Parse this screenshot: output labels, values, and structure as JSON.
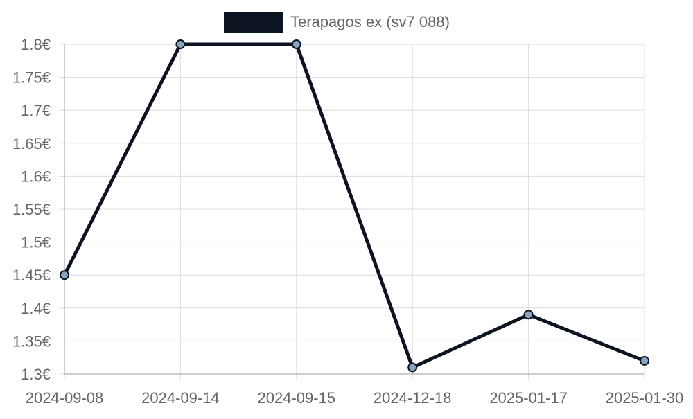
{
  "chart_data": {
    "type": "line",
    "x": [
      "2024-09-08",
      "2024-09-14",
      "2024-09-15",
      "2024-12-18",
      "2025-01-17",
      "2025-01-30"
    ],
    "series": [
      {
        "name": "Terapagos ex (sv7 088)",
        "values": [
          1.45,
          1.8,
          1.8,
          1.31,
          1.39,
          1.32
        ]
      }
    ],
    "ylim": [
      1.3,
      1.8
    ],
    "y_ticks": [
      "1.3€",
      "1.35€",
      "1.4€",
      "1.45€",
      "1.5€",
      "1.55€",
      "1.6€",
      "1.65€",
      "1.7€",
      "1.75€",
      "1.8€"
    ],
    "grid": true,
    "legend_position": "top-center",
    "colors": {
      "line": "#0d1421",
      "marker_fill": "#8aa3bf",
      "marker_stroke": "#0d1421",
      "grid": "#dcdcdc",
      "axis": "#bdbdbd",
      "text": "#666666"
    }
  }
}
